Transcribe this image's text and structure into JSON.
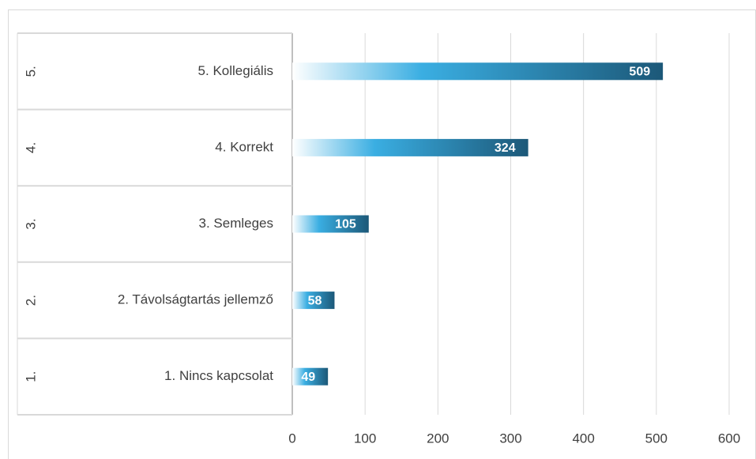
{
  "chart_data": {
    "type": "hbar",
    "group_labels": [
      "1.",
      "2.",
      "3.",
      "4.",
      "5."
    ],
    "categories": [
      "1. Nincs kapcsolat",
      "2. Távolságtartás jellemző",
      "3. Semleges",
      "4. Korrekt",
      "5. Kollegiális"
    ],
    "values": [
      49,
      58,
      105,
      324,
      509
    ],
    "gradient": [
      "#ffffff",
      "#3aaee2",
      "#1c5878"
    ],
    "xlim": [
      0,
      600
    ],
    "xticks": [
      0,
      100,
      200,
      300,
      400,
      500,
      600
    ],
    "grid": true
  }
}
